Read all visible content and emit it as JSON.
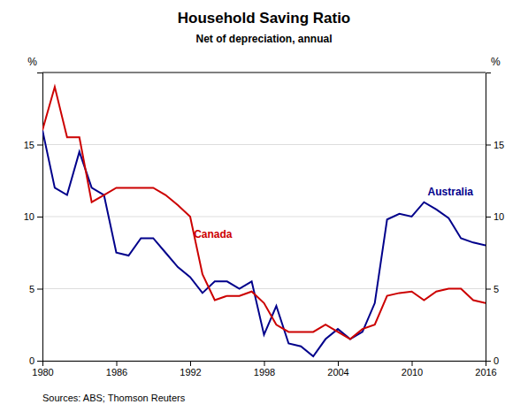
{
  "chart_data": {
    "type": "line",
    "title": "Household Saving Ratio",
    "subtitle": "Net of depreciation, annual",
    "ylabel": "%",
    "y2label": "%",
    "source": "Sources:  ABS; Thomson Reuters",
    "x": [
      1980,
      1981,
      1982,
      1983,
      1984,
      1985,
      1986,
      1987,
      1988,
      1989,
      1990,
      1991,
      1992,
      1993,
      1994,
      1995,
      1996,
      1997,
      1998,
      1999,
      2000,
      2001,
      2002,
      2003,
      2004,
      2005,
      2006,
      2007,
      2008,
      2009,
      2010,
      2011,
      2012,
      2013,
      2014,
      2015,
      2016
    ],
    "series": [
      {
        "color": "#00008B",
        "values": [
          16.0,
          12.0,
          11.5,
          14.5,
          12.0,
          11.5,
          7.5,
          7.3,
          8.5,
          8.5,
          7.5,
          6.5,
          5.8,
          4.7,
          5.5,
          5.5,
          5.0,
          5.5,
          1.8,
          3.8,
          1.2,
          1.0,
          0.3,
          1.5,
          2.2,
          1.5,
          2.0,
          4.0,
          9.8,
          10.2,
          10.0,
          11.0,
          10.5,
          9.9,
          8.5,
          8.2,
          8.0
        ]
      },
      {
        "color": "#CC0000",
        "values": [
          16.0,
          19.0,
          15.5,
          15.5,
          11.0,
          11.5,
          12.0,
          12.0,
          12.0,
          12.0,
          11.5,
          10.8,
          10.0,
          6.0,
          4.2,
          4.5,
          4.5,
          4.8,
          4.0,
          2.5,
          2.0,
          2.0,
          2.0,
          2.5,
          2.0,
          1.5,
          2.2,
          2.5,
          4.5,
          4.7,
          4.8,
          4.2,
          4.8,
          5.0,
          5.0,
          4.2,
          4.0
        ]
      }
    ],
    "annotations": [
      {
        "text": "Australia",
        "x": 2011.3,
        "y": 11.5,
        "color": "#00008B"
      },
      {
        "text": "Canada",
        "x": 1992.3,
        "y": 8.5,
        "color": "#CC0000"
      }
    ],
    "xlim": [
      1980,
      2016
    ],
    "xticks": [
      1980,
      1986,
      1992,
      1998,
      2004,
      2010,
      2016
    ],
    "ylim": [
      0,
      20
    ],
    "yticks": [
      0,
      5,
      10,
      15
    ],
    "y2lim": [
      0,
      20
    ],
    "y2ticks": [
      0,
      5,
      10,
      15
    ],
    "grid": true
  }
}
